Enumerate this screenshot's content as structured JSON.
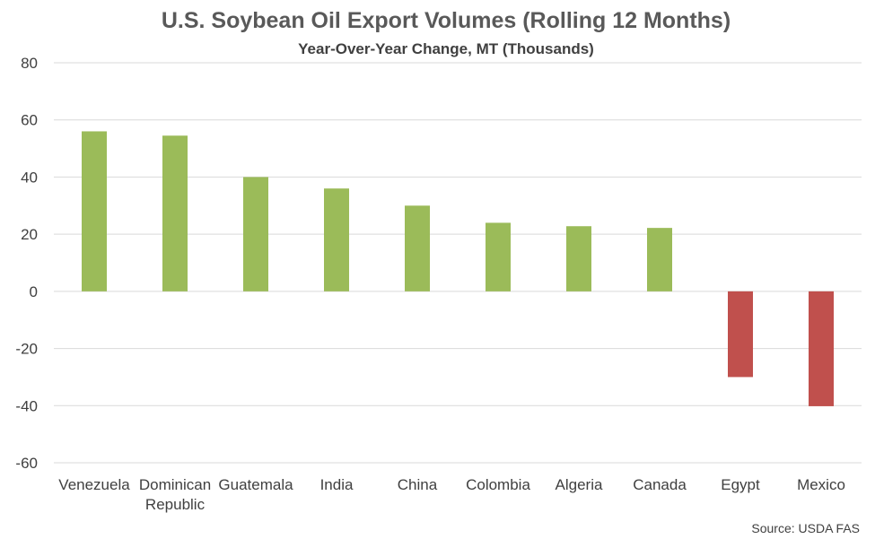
{
  "chart_data": {
    "type": "bar",
    "title": "U.S. Soybean Oil Export Volumes (Rolling 12 Months)",
    "subtitle": "Year-Over-Year Change, MT (Thousands)",
    "xlabel": "",
    "ylabel": "",
    "categories": [
      [
        "Venezuela"
      ],
      [
        "Dominican",
        "Republic"
      ],
      [
        "Guatemala"
      ],
      [
        "India"
      ],
      [
        "China"
      ],
      [
        "Colombia"
      ],
      [
        "Algeria"
      ],
      [
        "Canada"
      ],
      [
        "Egypt"
      ],
      [
        "Mexico"
      ]
    ],
    "values": [
      56,
      54.5,
      40,
      36,
      30,
      24,
      22.8,
      22.2,
      -30,
      -40.2
    ],
    "ylim": [
      -60,
      80
    ],
    "yticks": [
      80,
      60,
      40,
      20,
      0,
      -20,
      -40,
      -60
    ],
    "grid": true,
    "positive_color": "#9bbb59",
    "negative_color": "#c0504d",
    "source": "Source: USDA FAS"
  }
}
